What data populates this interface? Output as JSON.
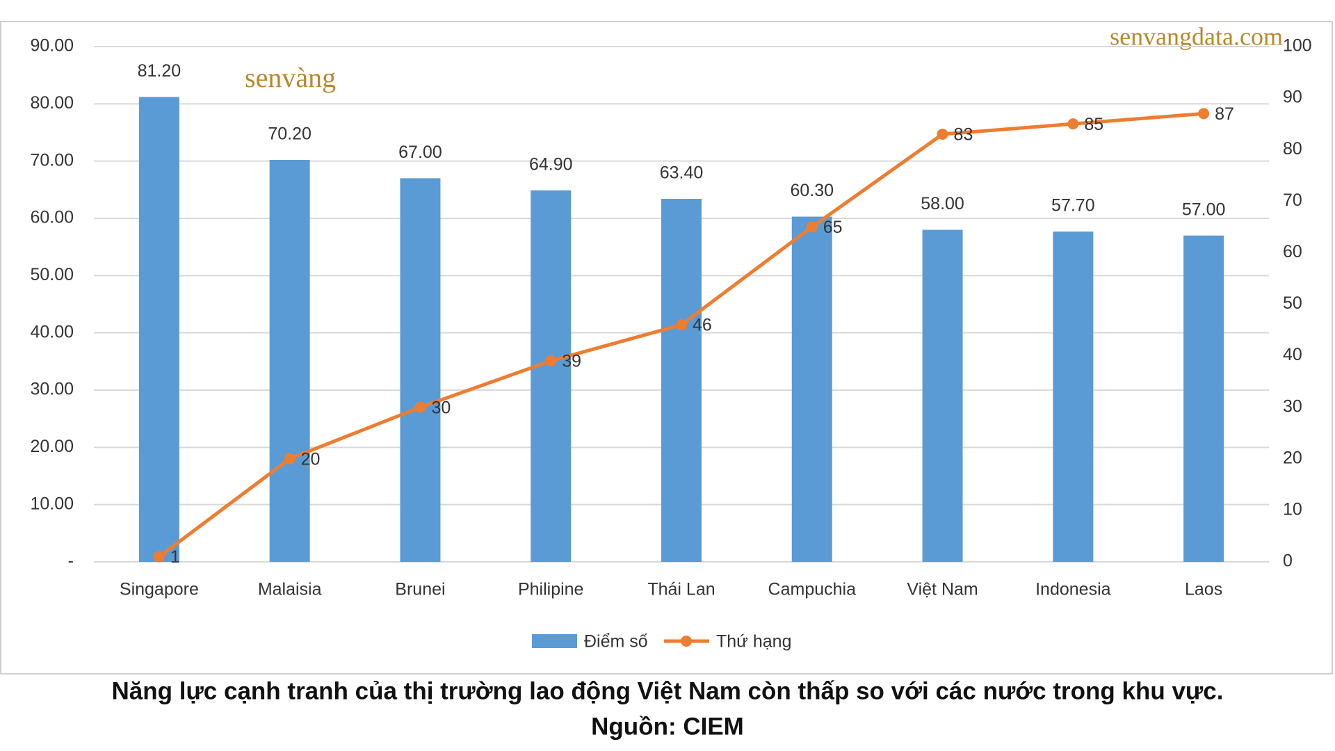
{
  "chart_data": {
    "type": "combo",
    "watermark": "senvangdata.com",
    "logo": "senvàng",
    "caption": "Năng lực cạnh tranh của thị trường lao động Việt Nam còn thấp so với các nước trong khu vực.",
    "source": "Nguồn: CIEM",
    "categories": [
      "Singapore",
      "Malaisia",
      "Brunei",
      "Philipine",
      "Thái Lan",
      "Campuchia",
      "Việt Nam",
      "Indonesia",
      "Laos"
    ],
    "series": [
      {
        "name": "Điểm số",
        "type": "bar",
        "color": "#5b9bd5",
        "axis": "y",
        "values": [
          81.2,
          70.2,
          67,
          64.9,
          63.4,
          60.3,
          58,
          57.7,
          57
        ],
        "value_labels": [
          "81.20",
          "70.20",
          "67.00",
          "64.90",
          "63.40",
          "60.30",
          "58.00",
          "57.70",
          "57.00"
        ]
      },
      {
        "name": "Thứ hạng",
        "type": "line",
        "color": "#ed7d31",
        "axis": "y2",
        "values": [
          1,
          20,
          30,
          39,
          46,
          65,
          83,
          85,
          87
        ]
      }
    ],
    "ylim": [
      0,
      90
    ],
    "yticks": [
      {
        "value": 0,
        "label": "-"
      },
      {
        "value": 10,
        "label": "10.00"
      },
      {
        "value": 20,
        "label": "20.00"
      },
      {
        "value": 30,
        "label": "30.00"
      },
      {
        "value": 40,
        "label": "40.00"
      },
      {
        "value": 50,
        "label": "50.00"
      },
      {
        "value": 60,
        "label": "60.00"
      },
      {
        "value": 70,
        "label": "70.00"
      },
      {
        "value": 80,
        "label": "80.00"
      },
      {
        "value": 90,
        "label": "90.00"
      }
    ],
    "y2lim": [
      0,
      100
    ],
    "y2ticks": [
      0,
      10,
      20,
      30,
      40,
      50,
      60,
      70,
      80,
      90,
      100
    ],
    "grid": true,
    "legend": "bottom"
  }
}
